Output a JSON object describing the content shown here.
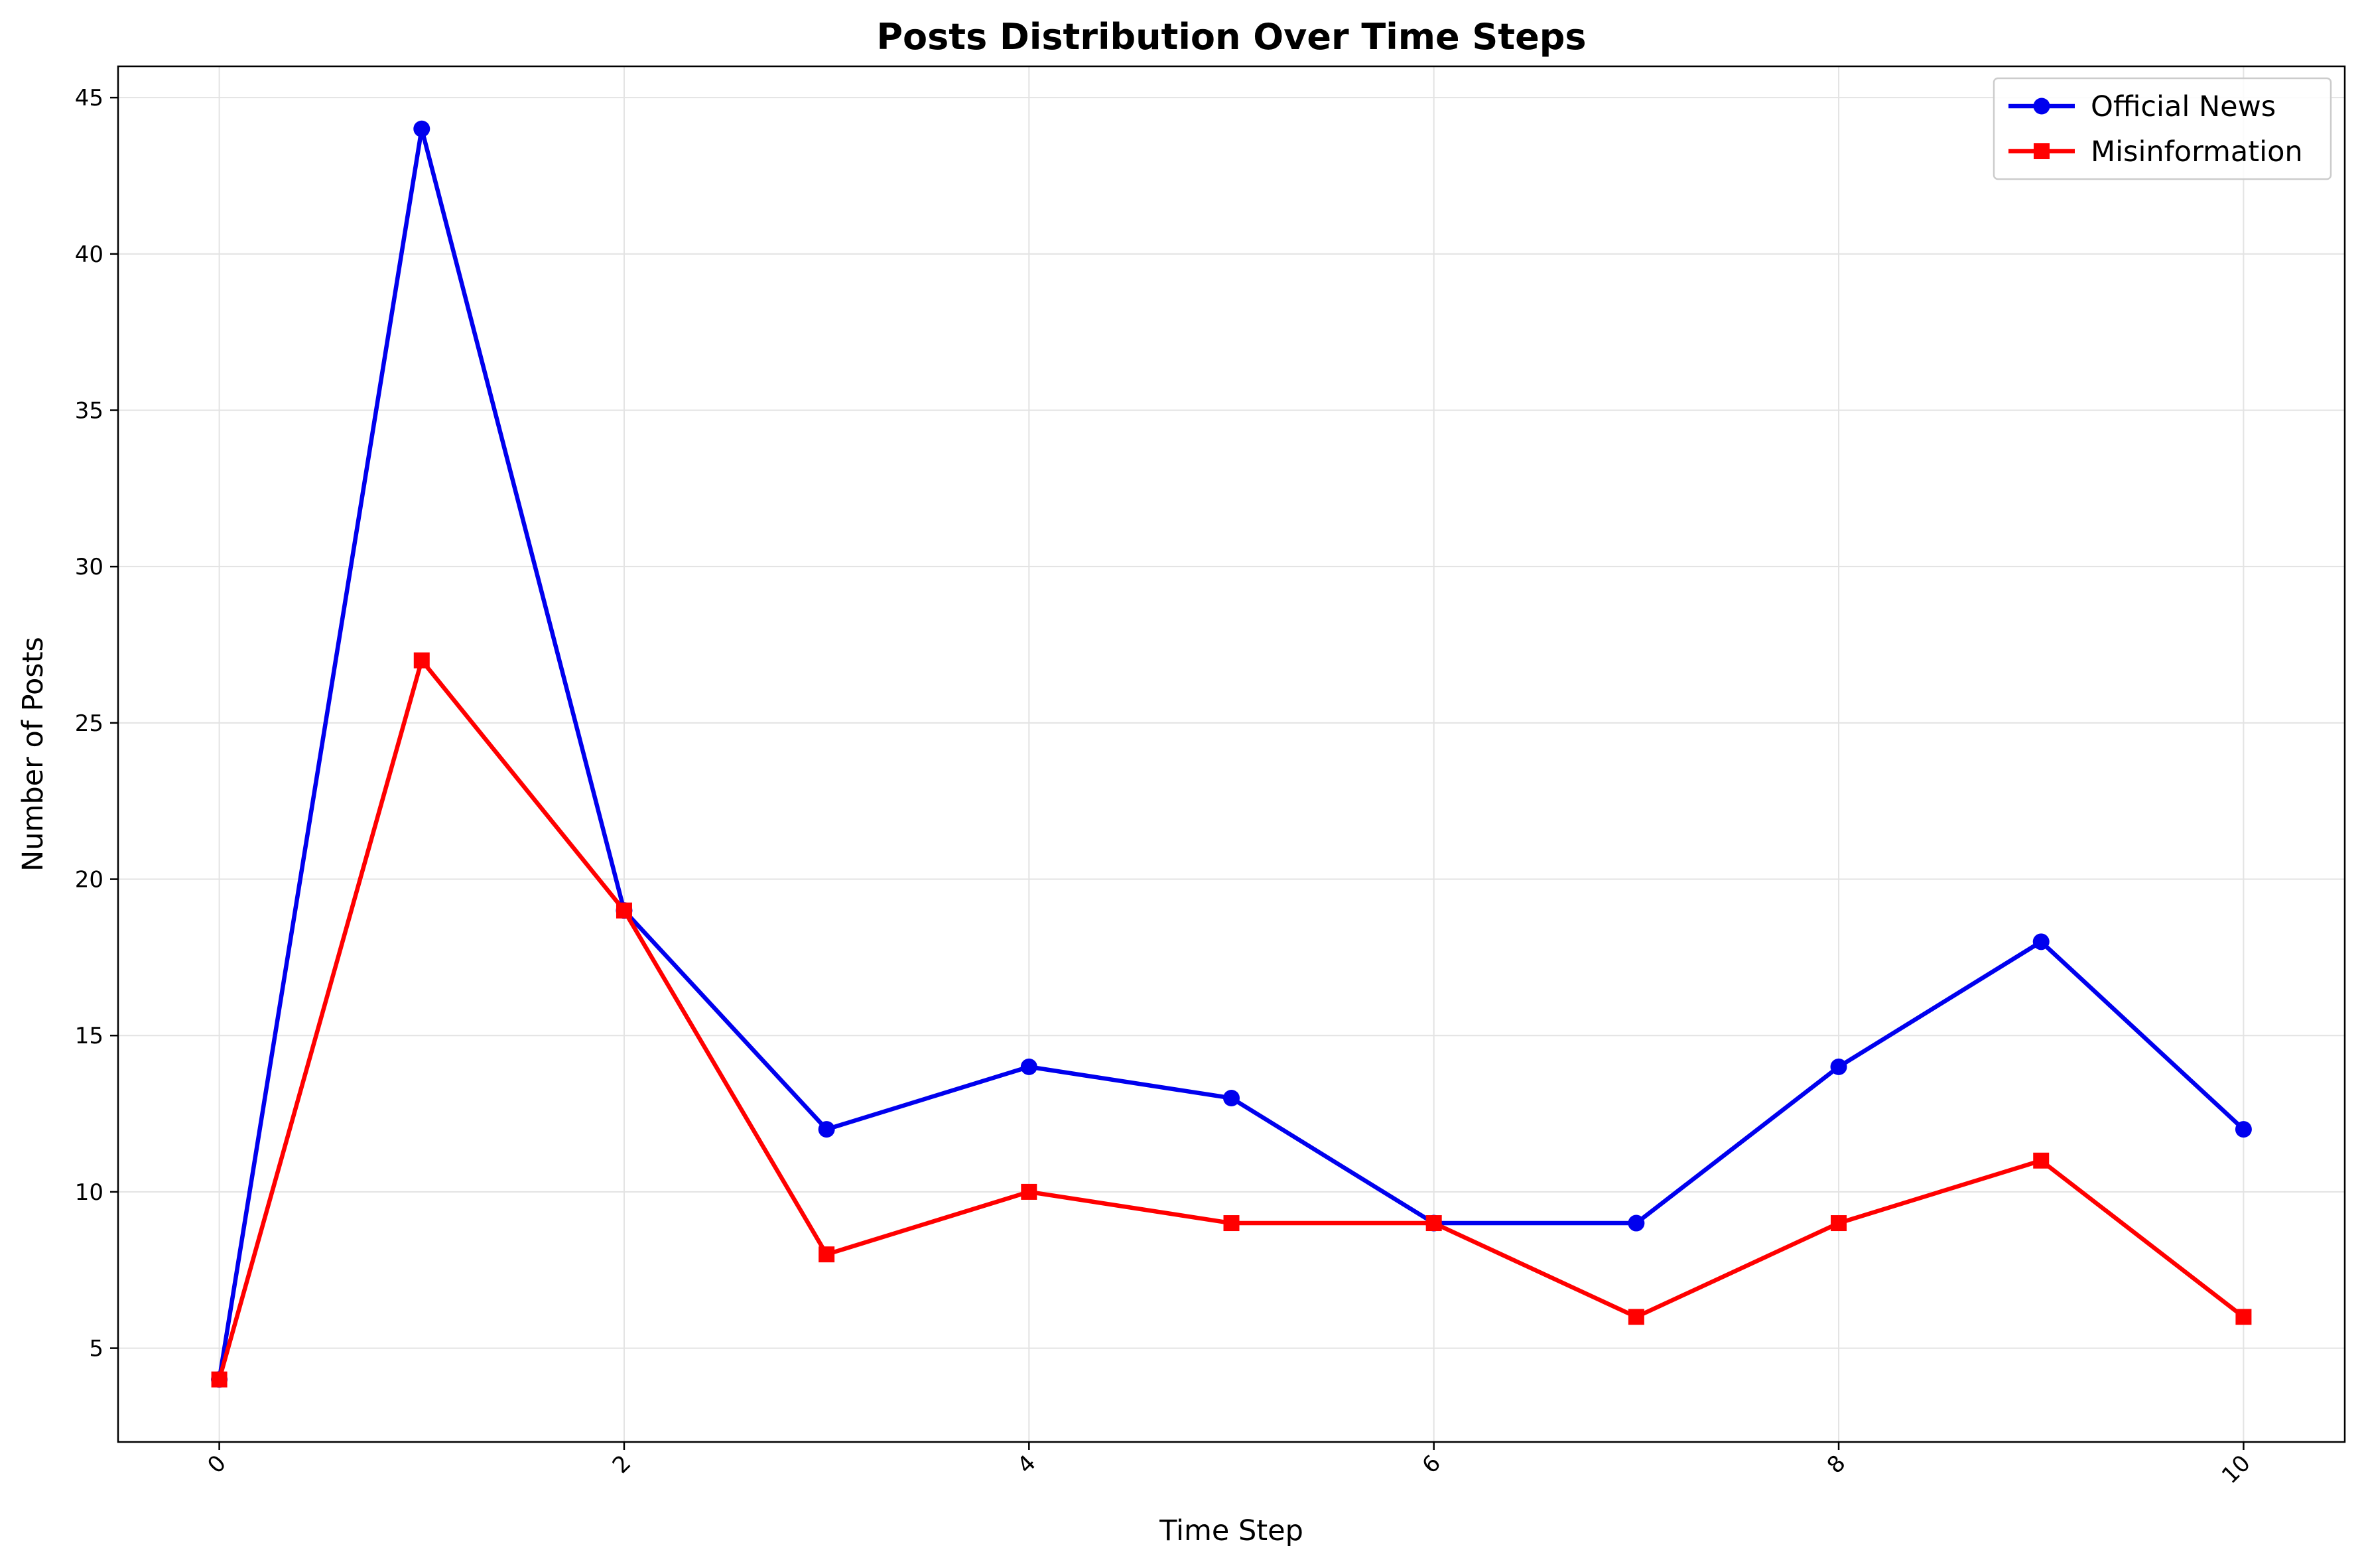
{
  "chart_data": {
    "type": "line",
    "title": "Posts Distribution Over Time Steps",
    "xlabel": "Time Step",
    "ylabel": "Number of Posts",
    "x": [
      0,
      1,
      2,
      3,
      4,
      5,
      6,
      7,
      8,
      9,
      10
    ],
    "xticks": [
      0,
      2,
      4,
      6,
      8,
      10
    ],
    "yticks": [
      5,
      10,
      15,
      20,
      25,
      30,
      35,
      40,
      45
    ],
    "xlim": [
      -0.5,
      10.5
    ],
    "ylim": [
      2,
      46
    ],
    "grid": true,
    "legend_position": "top-right",
    "series": [
      {
        "name": "Official News",
        "color": "#0000ee",
        "marker": "circle",
        "values": [
          4,
          44,
          19,
          12,
          14,
          13,
          9,
          9,
          14,
          18,
          12
        ]
      },
      {
        "name": "Misinformation",
        "color": "#ff0000",
        "marker": "square",
        "values": [
          4,
          27,
          19,
          8,
          10,
          9,
          9,
          6,
          9,
          11,
          6
        ]
      }
    ]
  }
}
